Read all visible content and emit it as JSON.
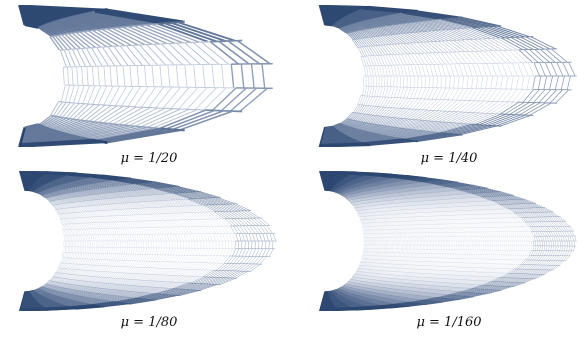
{
  "figure": {
    "panels": [
      {
        "caption": "μ = 1/20",
        "rows": 9,
        "cols": 28
      },
      {
        "caption": "μ = 1/40",
        "rows": 16,
        "cols": 50
      },
      {
        "caption": "μ = 1/80",
        "rows": 28,
        "cols": 86
      },
      {
        "caption": "μ = 1/160",
        "rows": 44,
        "cols": 130
      }
    ],
    "colors": {
      "dark": "#1d3a66",
      "light": "#c4cde0"
    }
  }
}
